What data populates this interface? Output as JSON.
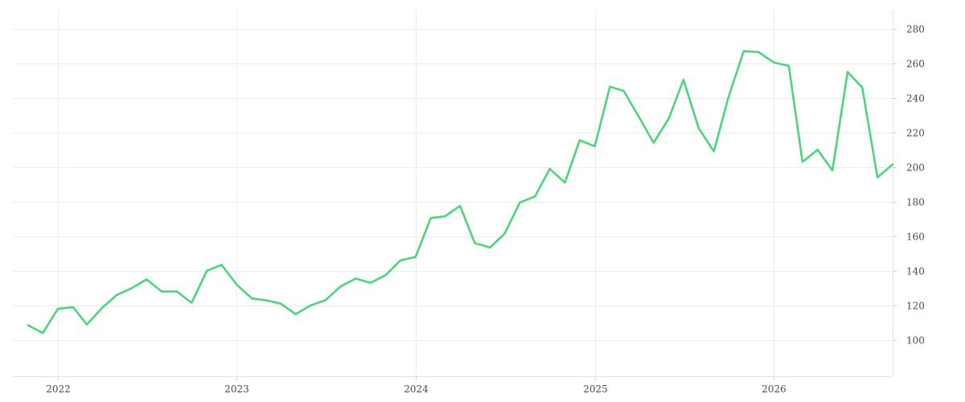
{
  "chart_data": {
    "type": "line",
    "title": "",
    "xlabel": "",
    "ylabel": "",
    "x_ticks": [
      "2022",
      "2023",
      "2024",
      "2025",
      "2026"
    ],
    "y_ticks": [
      100,
      120,
      140,
      160,
      180,
      200,
      220,
      240,
      260,
      280
    ],
    "xlim": [
      "2021-10-01",
      "2026-09-01"
    ],
    "ylim": [
      79,
      291
    ],
    "grid": true,
    "y_axis_position": "right",
    "series": [
      {
        "color": "#4cd57a",
        "x": [
          "2021-11-01",
          "2021-12-01",
          "2022-01-01",
          "2022-02-01",
          "2022-03-01",
          "2022-04-01",
          "2022-05-01",
          "2022-06-01",
          "2022-07-01",
          "2022-08-01",
          "2022-09-01",
          "2022-10-01",
          "2022-11-01",
          "2022-12-01",
          "2023-01-01",
          "2023-02-01",
          "2023-03-01",
          "2023-04-01",
          "2023-05-01",
          "2023-06-01",
          "2023-07-01",
          "2023-08-01",
          "2023-09-01",
          "2023-10-01",
          "2023-11-01",
          "2023-12-01",
          "2024-01-01",
          "2024-02-01",
          "2024-03-01",
          "2024-04-01",
          "2024-05-01",
          "2024-06-01",
          "2024-07-01",
          "2024-08-01",
          "2024-09-01",
          "2024-10-01",
          "2024-11-01",
          "2024-12-01",
          "2025-01-01",
          "2025-02-01",
          "2025-03-01",
          "2025-04-01",
          "2025-05-01",
          "2025-06-01",
          "2025-07-01",
          "2025-08-01",
          "2025-09-01",
          "2025-10-01",
          "2025-11-01",
          "2025-12-01",
          "2026-01-01",
          "2026-02-01",
          "2026-03-01",
          "2026-04-01",
          "2026-05-01",
          "2026-06-01",
          "2026-07-01",
          "2026-08-01",
          "2026-09-01"
        ],
        "values": [
          108.5,
          104,
          118,
          119,
          109,
          118.5,
          126,
          130,
          135,
          128,
          128,
          121.5,
          140,
          143.5,
          132,
          124,
          123,
          121,
          115,
          120,
          123,
          131,
          135.5,
          133,
          137.5,
          146,
          148,
          170.5,
          171.5,
          177.5,
          156,
          153.5,
          161.5,
          179.5,
          183,
          199,
          191,
          215.5,
          212,
          246.5,
          244,
          229,
          214,
          228,
          250.5,
          222.5,
          209,
          240.5,
          267,
          266.5,
          260.5,
          258.5,
          203,
          210,
          198,
          255,
          246,
          194,
          201.5
        ]
      }
    ]
  }
}
